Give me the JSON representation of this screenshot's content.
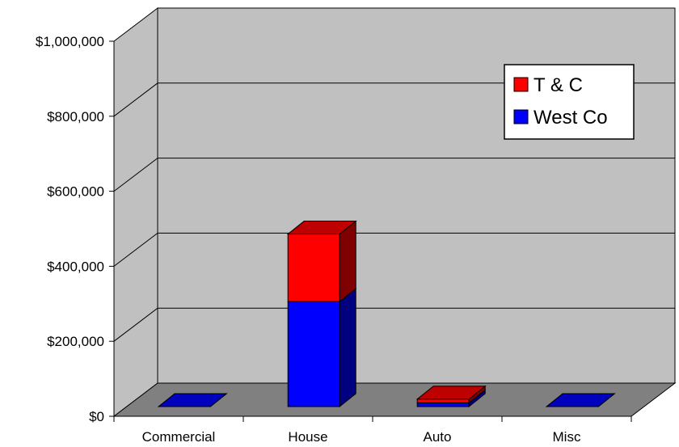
{
  "chart_data": {
    "type": "bar",
    "stacked": true,
    "three_d": true,
    "title": "",
    "xlabel": "",
    "ylabel": "",
    "categories": [
      "Commercial",
      "House",
      "Auto",
      "Misc"
    ],
    "series": [
      {
        "name": "West Co",
        "values": [
          0,
          280000,
          10000,
          0
        ],
        "color": "#0000ff"
      },
      {
        "name": "T & C",
        "values": [
          0,
          180000,
          10000,
          0
        ],
        "color": "#ff0000"
      }
    ],
    "ylim": [
      0,
      1000000
    ],
    "yticks": [
      0,
      200000,
      400000,
      600000,
      800000,
      1000000
    ],
    "ytick_labels": [
      "$0",
      "$200,000",
      "$400,000",
      "$600,000",
      "$800,000",
      "$1,000,000"
    ],
    "grid": true,
    "legend_position": "top-right",
    "legend_order": [
      "T & C",
      "West Co"
    ],
    "colors": {
      "wall": "#c0c0c0",
      "floor": "#808080"
    }
  }
}
